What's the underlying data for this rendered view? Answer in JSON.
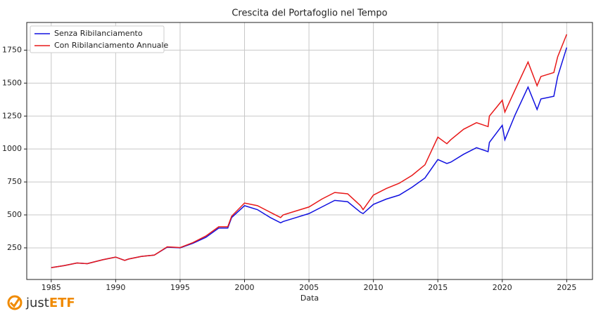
{
  "chart_data": {
    "type": "line",
    "title": "Crescita del Portafoglio nel Tempo",
    "x_label": "Data",
    "x": [
      1985,
      1986,
      1987,
      1987.8,
      1988,
      1989,
      1990,
      1990.7,
      1991,
      1992,
      1993,
      1994,
      1995,
      1996,
      1997,
      1998,
      1998.7,
      1999,
      2000,
      2001,
      2002,
      2002.8,
      2003,
      2004,
      2005,
      2006,
      2007,
      2008,
      2009,
      2009.2,
      2010,
      2011,
      2012,
      2013,
      2014,
      2015,
      2015.7,
      2016,
      2017,
      2018,
      2018.9,
      2019,
      2020,
      2020.2,
      2021,
      2022,
      2022.7,
      2023,
      2024,
      2024.3,
      2025
    ],
    "series": [
      {
        "name": "Senza Ribilanciamento",
        "color": "#1010e0",
        "values": [
          100,
          115,
          135,
          130,
          135,
          160,
          180,
          155,
          165,
          185,
          195,
          255,
          250,
          285,
          330,
          400,
          400,
          480,
          570,
          540,
          480,
          440,
          450,
          480,
          510,
          560,
          610,
          600,
          520,
          510,
          580,
          620,
          650,
          710,
          780,
          920,
          890,
          900,
          960,
          1010,
          980,
          1050,
          1180,
          1070,
          1260,
          1470,
          1300,
          1380,
          1400,
          1550,
          1770
        ]
      },
      {
        "name": "Con Ribilanciamento Annuale",
        "color": "#e81818",
        "values": [
          100,
          115,
          135,
          130,
          135,
          160,
          180,
          155,
          165,
          185,
          195,
          258,
          252,
          290,
          340,
          410,
          410,
          490,
          590,
          570,
          520,
          480,
          500,
          530,
          560,
          620,
          670,
          660,
          570,
          540,
          650,
          700,
          740,
          800,
          880,
          1090,
          1040,
          1070,
          1150,
          1200,
          1170,
          1250,
          1370,
          1280,
          1450,
          1660,
          1480,
          1550,
          1580,
          1700,
          1870
        ]
      }
    ],
    "xlim": [
      1983.1,
      2027.0
    ],
    "ylim": [
      10,
      1960
    ],
    "xticks": [
      1985,
      1990,
      1995,
      2000,
      2005,
      2010,
      2015,
      2020,
      2025
    ],
    "yticks": [
      250,
      500,
      750,
      1000,
      1250,
      1500,
      1750
    ],
    "grid": true,
    "legend": "upper-left",
    "logo": {
      "prefix": "just",
      "suffix": "ETF"
    }
  }
}
